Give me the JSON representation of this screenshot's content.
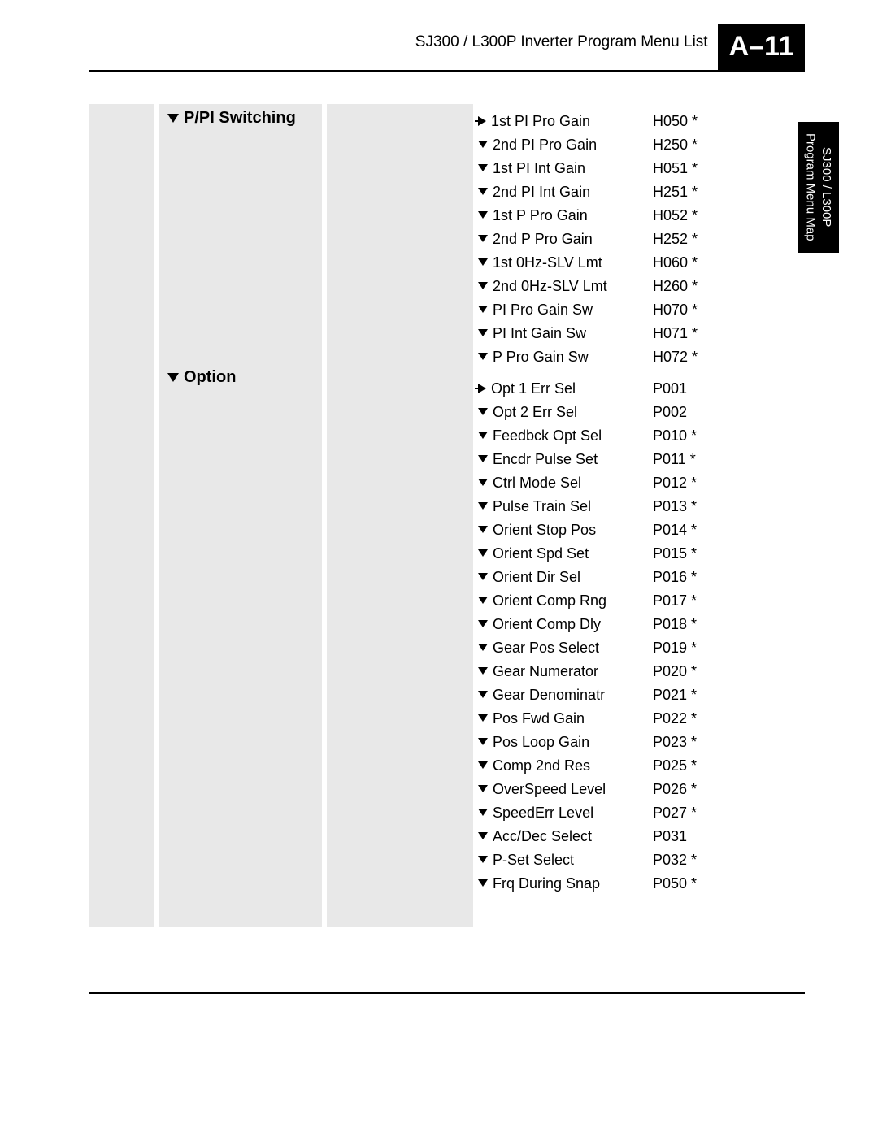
{
  "header": {
    "title": "SJ300 / L300P Inverter Program Menu List",
    "page_number": "A–11"
  },
  "side_tab": {
    "line1": "SJ300 / L300P",
    "line2": "Program Menu Map"
  },
  "groups": [
    {
      "title": "P/PI Switching",
      "items": [
        {
          "marker": "right",
          "label": "1st PI Pro Gain",
          "code": "H050 *"
        },
        {
          "marker": "down",
          "label": "2nd PI Pro Gain",
          "code": "H250 *"
        },
        {
          "marker": "down",
          "label": "1st PI Int Gain",
          "code": "H051 *"
        },
        {
          "marker": "down",
          "label": "2nd PI Int Gain",
          "code": "H251 *"
        },
        {
          "marker": "down",
          "label": "1st P Pro Gain",
          "code": "H052 *"
        },
        {
          "marker": "down",
          "label": "2nd P Pro Gain",
          "code": "H252 *"
        },
        {
          "marker": "down",
          "label": "1st 0Hz-SLV Lmt",
          "code": "H060 *"
        },
        {
          "marker": "down",
          "label": "2nd 0Hz-SLV Lmt",
          "code": "H260 *"
        },
        {
          "marker": "down",
          "label": "PI Pro Gain Sw",
          "code": "H070 *"
        },
        {
          "marker": "down",
          "label": "PI Int Gain Sw",
          "code": "H071 *"
        },
        {
          "marker": "down",
          "label": "P Pro Gain Sw",
          "code": "H072 *"
        }
      ]
    },
    {
      "title": "Option",
      "items": [
        {
          "marker": "right",
          "label": "Opt 1 Err Sel",
          "code": "P001"
        },
        {
          "marker": "down",
          "label": "Opt 2 Err Sel",
          "code": "P002"
        },
        {
          "marker": "down",
          "label": "Feedbck Opt Sel",
          "code": "P010 *"
        },
        {
          "marker": "down",
          "label": "Encdr Pulse Set",
          "code": "P011 *"
        },
        {
          "marker": "down",
          "label": "Ctrl Mode Sel",
          "code": "P012 *"
        },
        {
          "marker": "down",
          "label": "Pulse Train Sel",
          "code": "P013 *"
        },
        {
          "marker": "down",
          "label": "Orient Stop Pos",
          "code": "P014 *"
        },
        {
          "marker": "down",
          "label": "Orient Spd Set",
          "code": "P015 *"
        },
        {
          "marker": "down",
          "label": "Orient Dir Sel",
          "code": "P016 *"
        },
        {
          "marker": "down",
          "label": "Orient Comp Rng",
          "code": "P017 *"
        },
        {
          "marker": "down",
          "label": "Orient Comp Dly",
          "code": "P018 *"
        },
        {
          "marker": "down",
          "label": "Gear Pos Select",
          "code": "P019 *"
        },
        {
          "marker": "down",
          "label": "Gear Numerator",
          "code": "P020 *"
        },
        {
          "marker": "down",
          "label": "Gear Denominatr",
          "code": "P021 *"
        },
        {
          "marker": "down",
          "label": "Pos Fwd Gain",
          "code": "P022 *"
        },
        {
          "marker": "down",
          "label": "Pos Loop Gain",
          "code": "P023 *"
        },
        {
          "marker": "down",
          "label": "Comp 2nd Res",
          "code": "P025 *"
        },
        {
          "marker": "down",
          "label": "OverSpeed Level",
          "code": "P026 *"
        },
        {
          "marker": "down",
          "label": "SpeedErr Level",
          "code": "P027 *"
        },
        {
          "marker": "down",
          "label": "Acc/Dec Select",
          "code": "P031"
        },
        {
          "marker": "down",
          "label": "P-Set Select",
          "code": "P032 *"
        },
        {
          "marker": "down",
          "label": "Frq During Snap",
          "code": "P050 *"
        }
      ]
    }
  ],
  "layout": {
    "group_heading_offsets": [
      0,
      320
    ]
  },
  "colors": {
    "page_bg": "#ffffff",
    "panel_bg": "#e8e8e8",
    "text": "#000000",
    "badge_bg": "#000000",
    "badge_fg": "#ffffff"
  }
}
